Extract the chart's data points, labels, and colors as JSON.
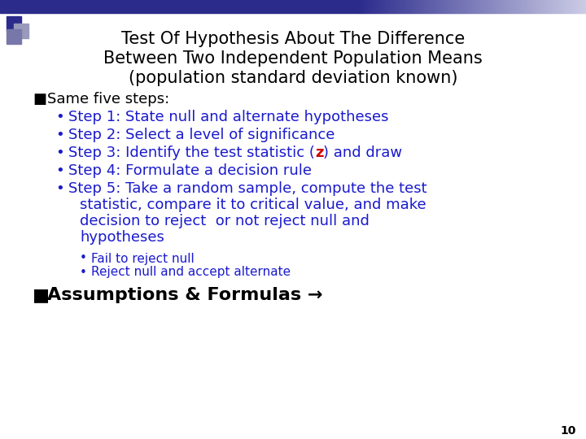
{
  "title_line1": "Test Of Hypothesis About The Difference",
  "title_line2": "Between Two Independent Population Means",
  "title_line3": "(population standard deviation known)",
  "title_color": "#000000",
  "bg_color": "#ffffff",
  "blue_color": "#1A1ACD",
  "red_color": "#CC0000",
  "black_color": "#000000",
  "bullet_black": "■",
  "bullet_blue": "•",
  "slide_number": "10",
  "header_bar_dark": "#2B2B8C",
  "header_bar_light": "#AAAACC",
  "dec_sq1": "#2B2B8C",
  "dec_sq2": "#9999BB",
  "dec_sq3": "#7777AA",
  "title_fontsize": 15,
  "body_fontsize": 13,
  "sub_fontsize": 11,
  "assump_fontsize": 16
}
